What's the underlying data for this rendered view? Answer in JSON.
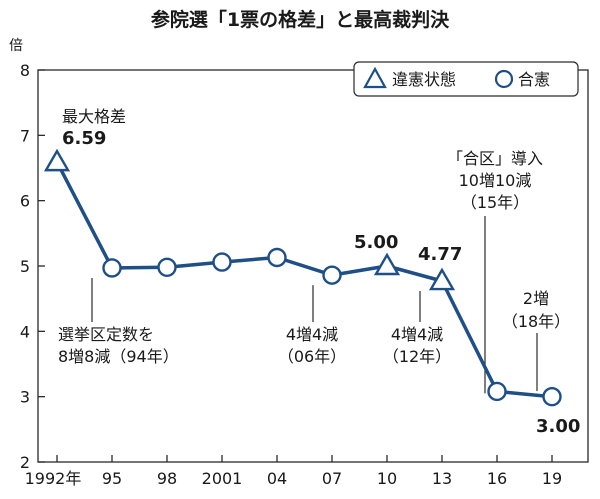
{
  "chart_data": {
    "type": "line",
    "title": "参院選「1票の格差」と最高裁判決",
    "ylabel": "倍",
    "xlabel": "",
    "ylim": [
      2,
      8
    ],
    "yticks": [
      "2",
      "3",
      "4",
      "5",
      "6",
      "7",
      "8"
    ],
    "x_tick_labels": [
      "1992年",
      "95",
      "98",
      "2001",
      "04",
      "07",
      "10",
      "13",
      "16",
      "19"
    ],
    "grid": false,
    "legend_position": "top-right",
    "legend": [
      {
        "label": "違憲状態",
        "marker": "triangle"
      },
      {
        "label": "合憲",
        "marker": "circle"
      }
    ],
    "colors": {
      "line": "#1e4f86",
      "marker_stroke": "#1e4f86",
      "marker_fill": "#ffffff",
      "text": "#1a1a1a"
    },
    "series": [
      {
        "values": [
          {
            "x": 1992,
            "y": 6.59,
            "ruling": "違憲状態"
          },
          {
            "x": 1995,
            "y": 4.97,
            "ruling": "合憲"
          },
          {
            "x": 1998,
            "y": 4.98,
            "ruling": "合憲"
          },
          {
            "x": 2001,
            "y": 5.06,
            "ruling": "合憲"
          },
          {
            "x": 2004,
            "y": 5.13,
            "ruling": "合憲"
          },
          {
            "x": 2007,
            "y": 4.86,
            "ruling": "合憲"
          },
          {
            "x": 2010,
            "y": 5.0,
            "ruling": "違憲状態"
          },
          {
            "x": 2013,
            "y": 4.77,
            "ruling": "違憲状態"
          },
          {
            "x": 2016,
            "y": 3.08,
            "ruling": "合憲"
          },
          {
            "x": 2019,
            "y": 3.0,
            "ruling": "合憲"
          }
        ]
      }
    ],
    "value_labels": [
      "6.59",
      "5.00",
      "4.77",
      "3.00"
    ],
    "annotations": {
      "max_label": "最大格差",
      "reform_94": [
        "選挙区定数を",
        "8増8減（94年）"
      ],
      "reform_06": [
        "4増4減",
        "（06年）"
      ],
      "reform_12": [
        "4増4減",
        "（12年）"
      ],
      "reform_15": [
        "「合区」導入",
        "10増10減",
        "（15年）"
      ],
      "reform_18": [
        "2増",
        "（18年）"
      ]
    }
  }
}
